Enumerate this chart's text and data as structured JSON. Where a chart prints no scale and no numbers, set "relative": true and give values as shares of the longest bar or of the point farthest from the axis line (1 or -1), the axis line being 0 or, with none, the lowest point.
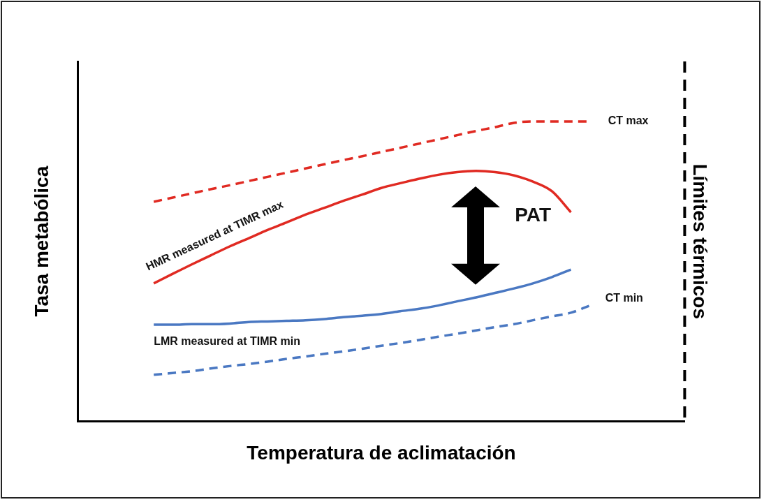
{
  "chart_data": {
    "type": "line",
    "relative": true,
    "xlabel": "Temperatura de aclimatación",
    "ylabel": "Tasa metabólica",
    "y2label": "Límites térmicos",
    "categories": [
      null,
      null,
      null,
      null,
      null,
      null,
      null,
      null,
      null,
      null,
      null,
      null,
      null,
      null,
      null,
      null,
      null,
      null,
      null,
      null,
      null,
      null,
      null,
      null,
      null,
      null,
      null,
      null,
      null,
      null,
      null,
      null,
      null
    ],
    "series": [
      {
        "name": "CT max",
        "color": "#e02a22",
        "line_style": "dashed",
        "values": [
          null,
          null,
          null,
          null,
          0.732,
          0.746,
          0.76,
          0.774,
          0.787,
          0.801,
          0.815,
          0.829,
          0.843,
          0.857,
          0.871,
          0.884,
          0.898,
          0.912,
          0.926,
          0.94,
          0.954,
          0.968,
          0.981,
          0.995,
          1,
          1,
          1,
          1,
          null,
          null,
          null,
          null,
          null
        ]
      },
      {
        "name": "HMR measured at TIMR max",
        "color": "#e02a22",
        "line_style": "solid",
        "values": [
          null,
          null,
          null,
          null,
          0.46,
          0.492,
          0.523,
          0.553,
          0.583,
          0.61,
          0.638,
          0.663,
          0.689,
          0.712,
          0.735,
          0.756,
          0.778,
          0.794,
          0.809,
          0.822,
          0.831,
          0.835,
          0.831,
          0.82,
          0.799,
          0.767,
          0.697,
          null,
          null,
          null,
          null,
          null,
          null
        ]
      },
      {
        "name": "LMR measured at TIMR min",
        "color": "#4a78c2",
        "line_style": "solid",
        "values": [
          null,
          null,
          null,
          null,
          0.322,
          0.322,
          0.324,
          0.324,
          0.326,
          0.331,
          0.333,
          0.335,
          0.337,
          0.341,
          0.347,
          0.352,
          0.358,
          0.367,
          0.375,
          0.386,
          0.4,
          0.413,
          0.428,
          0.443,
          0.46,
          0.481,
          0.506,
          null,
          null,
          null,
          null,
          null,
          null
        ]
      },
      {
        "name": "CT min",
        "color": "#4a78c2",
        "line_style": "dashed",
        "values": [
          null,
          null,
          null,
          null,
          0.155,
          0.161,
          0.167,
          0.176,
          0.184,
          0.191,
          0.199,
          0.208,
          0.216,
          0.225,
          0.233,
          0.242,
          0.252,
          0.261,
          0.271,
          0.282,
          0.292,
          0.303,
          0.314,
          0.324,
          0.337,
          0.35,
          0.362,
          0.386,
          null,
          null,
          null,
          null,
          null
        ]
      }
    ],
    "annotations": [
      "PAT"
    ],
    "grid": false,
    "legend": false,
    "marker": "none"
  }
}
